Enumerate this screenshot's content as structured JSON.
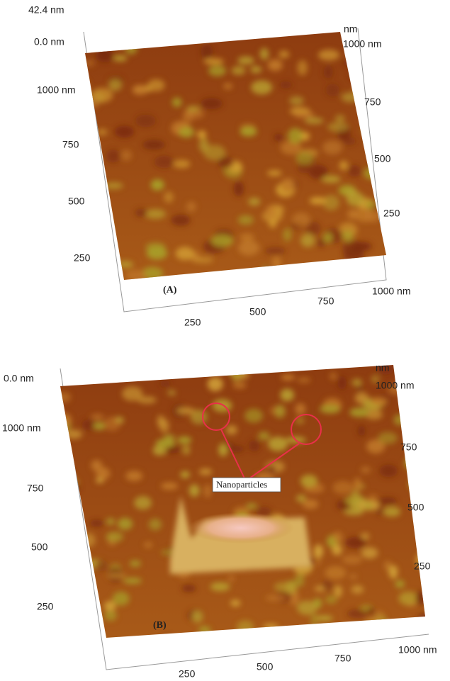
{
  "panels": [
    {
      "label": "(A)",
      "z_top": "42.4 nm",
      "z_bottom": "0.0 nm",
      "left_axis": [
        "1000 nm",
        "750",
        "500",
        "250"
      ],
      "right_axis": [
        "nm",
        "1000 nm",
        "750",
        "500",
        "250"
      ],
      "bottom_axis": [
        "250",
        "500",
        "750",
        "1000 nm"
      ]
    },
    {
      "label": "(B)",
      "z_bottom": "0.0 nm",
      "left_axis": [
        "1000 nm",
        "750",
        "500",
        "250"
      ],
      "right_axis": [
        "nm",
        "1000 nm",
        "750",
        "500",
        "250"
      ],
      "bottom_axis": [
        "250",
        "500",
        "750",
        "1000 nm"
      ],
      "annotation": "Nanoparticles"
    }
  ]
}
